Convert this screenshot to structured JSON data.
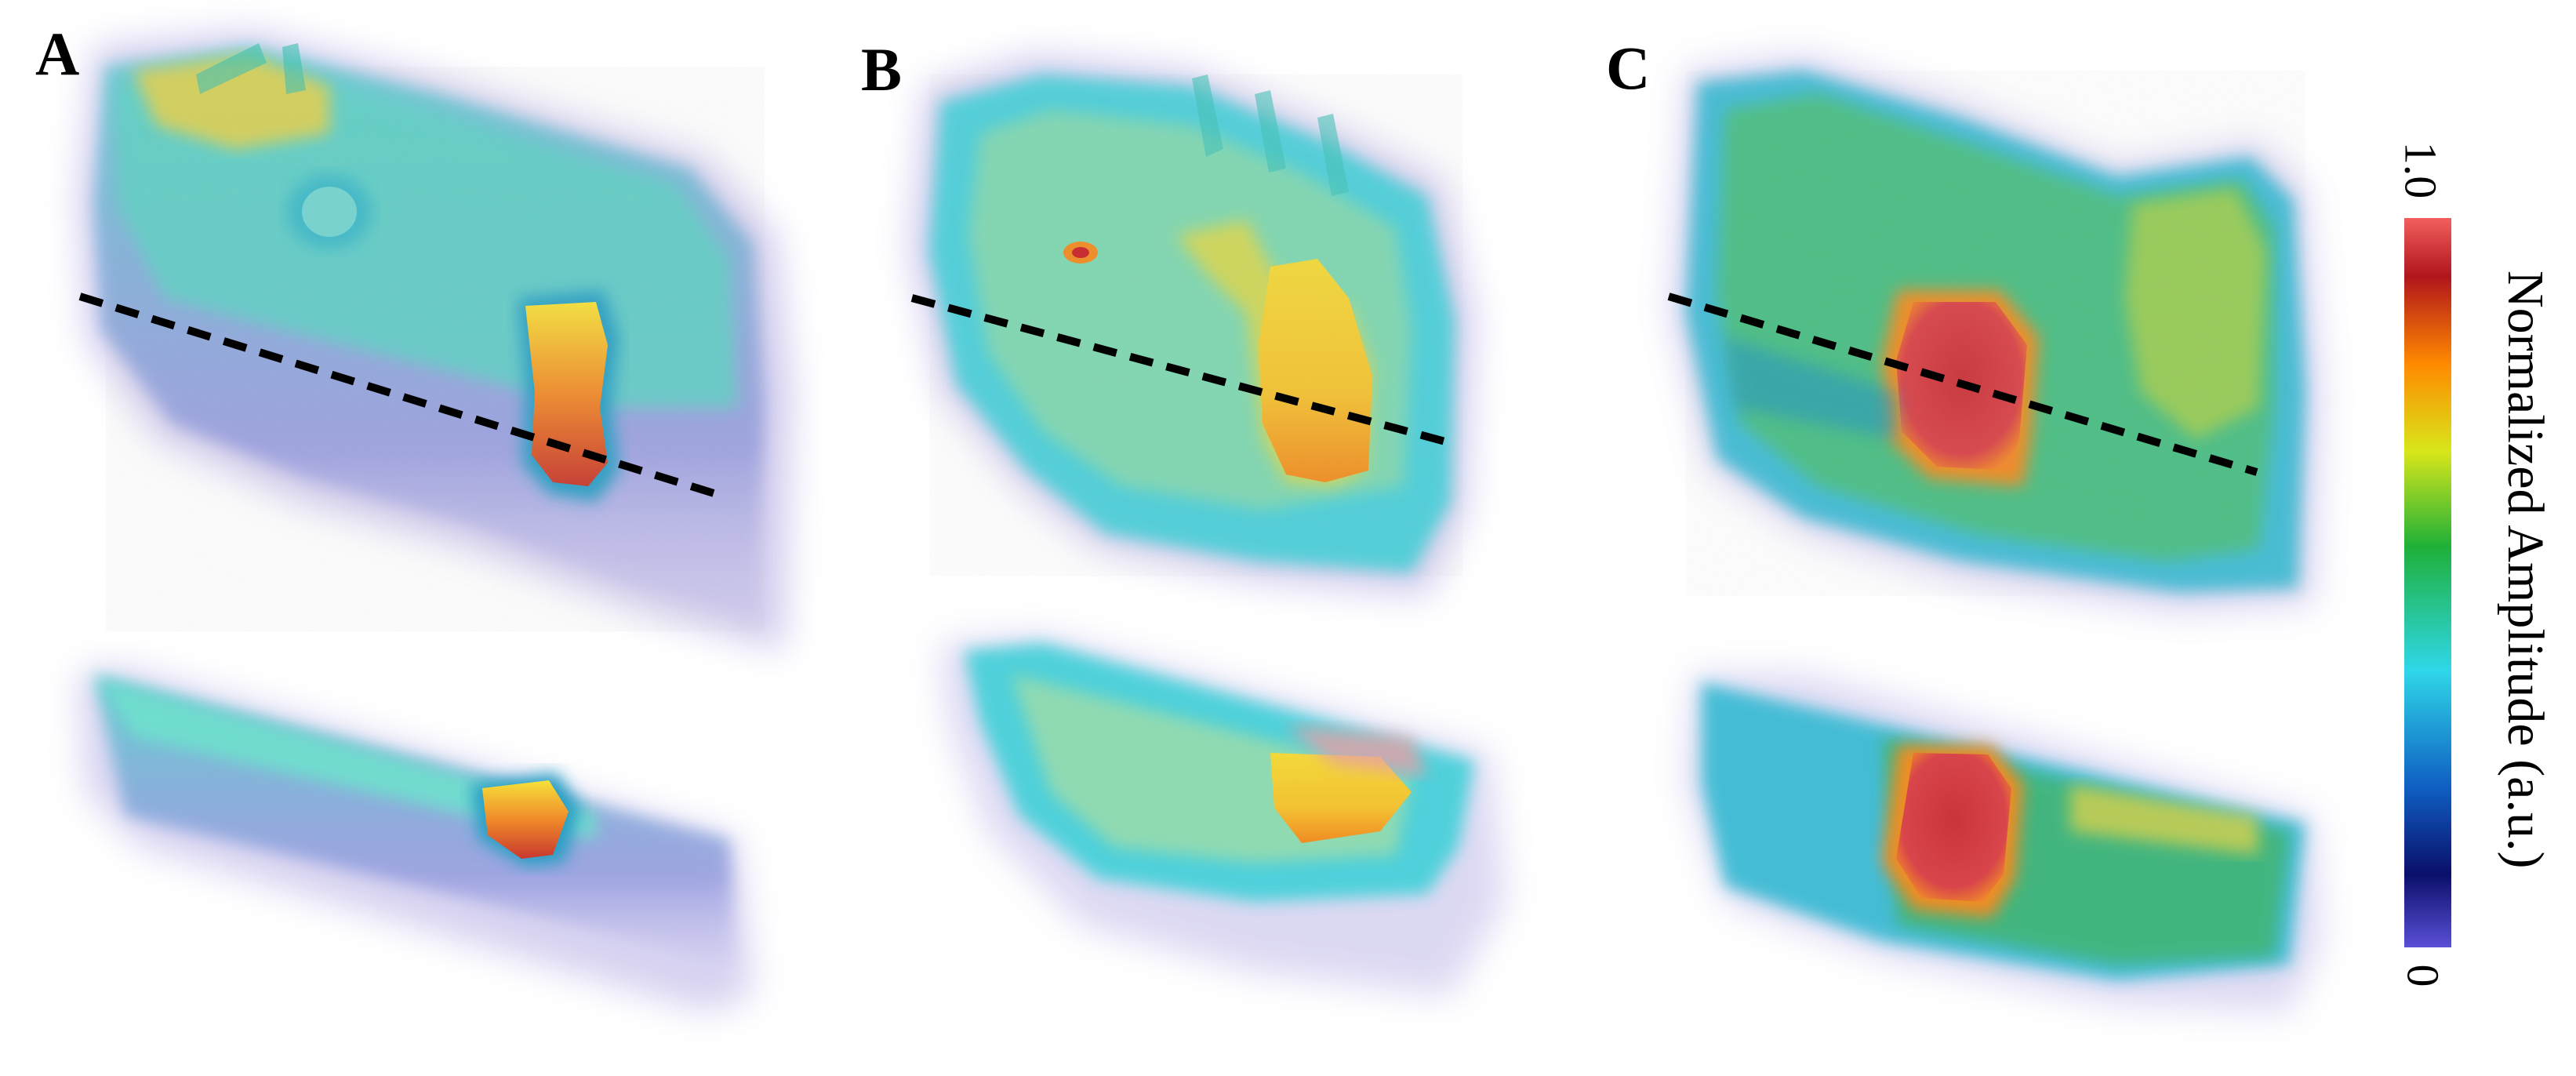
{
  "panels": [
    {
      "label": "A"
    },
    {
      "label": "B"
    },
    {
      "label": "C"
    }
  ],
  "colorbar": {
    "title": "Normalized Amplitude (a.u.)",
    "max_label": "1.0",
    "min_label": "0",
    "stops": [
      "#5a4fd6",
      "#0b0f6b",
      "#0f5fc2",
      "#2fd7e8",
      "#1fb038",
      "#d8e61a",
      "#ff8a00",
      "#b0151b",
      "#f25e5e"
    ]
  },
  "colors": {
    "cyan": "#3fd6d3",
    "teal": "#5fc7c2",
    "green": "#3fae52",
    "yellow": "#f2d93a",
    "orange": "#f08c23",
    "red": "#d2342e",
    "purple": "#6f63c9",
    "dashed_line": "#000000"
  }
}
